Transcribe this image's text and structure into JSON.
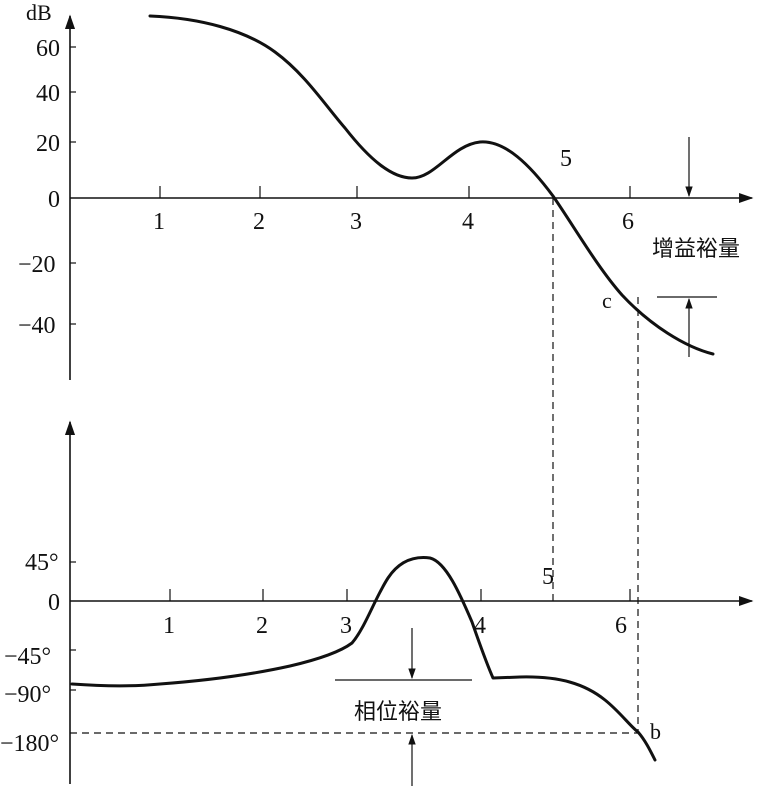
{
  "upper_plot": {
    "y_unit": "dB",
    "y_ticks": [
      "60",
      "40",
      "20",
      "0",
      "−20",
      "−40"
    ],
    "x_ticks": [
      "1",
      "2",
      "3",
      "4",
      "6"
    ],
    "point_labels": {
      "crossover": "5",
      "c": "c"
    },
    "gain_margin_label": "增益裕量"
  },
  "lower_plot": {
    "y_ticks": [
      "45°",
      "0",
      "−45°",
      "−90°",
      "−180°"
    ],
    "x_ticks": [
      "1",
      "2",
      "3",
      "4",
      "6"
    ],
    "point_labels": {
      "crossover": "5",
      "b": "b"
    },
    "phase_margin_label": "相位裕量"
  }
}
